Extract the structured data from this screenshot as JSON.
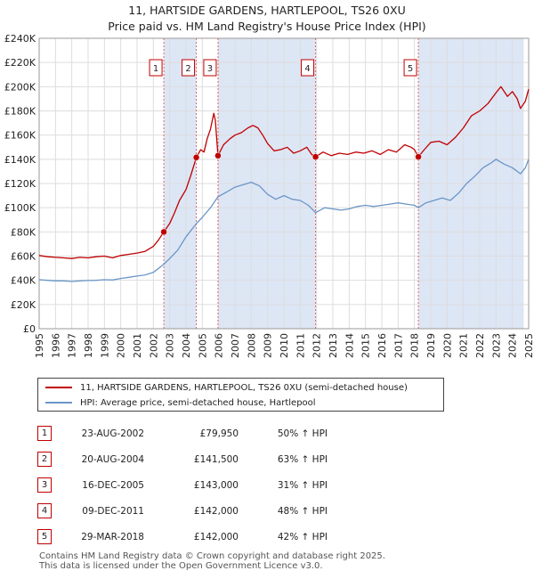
{
  "title_line1": "11, HARTSIDE GARDENS, HARTLEPOOL, TS26 0XU",
  "title_line2": "Price paid vs. HM Land Registry's House Price Index (HPI)",
  "colors": {
    "price_line": "#c00000",
    "hpi_line": "#6a96c8",
    "shade": "#dde6f5",
    "grid": "#dddddd",
    "vline": "#e06666"
  },
  "chart_data": {
    "type": "line",
    "xlim": [
      1995,
      2025
    ],
    "ylim": [
      0,
      240000
    ],
    "grid": true,
    "y_ticks": [
      {
        "value": 0,
        "label": "£0"
      },
      {
        "value": 20000,
        "label": "£20K"
      },
      {
        "value": 40000,
        "label": "£40K"
      },
      {
        "value": 60000,
        "label": "£60K"
      },
      {
        "value": 80000,
        "label": "£80K"
      },
      {
        "value": 100000,
        "label": "£100K"
      },
      {
        "value": 120000,
        "label": "£120K"
      },
      {
        "value": 140000,
        "label": "£140K"
      },
      {
        "value": 160000,
        "label": "£160K"
      },
      {
        "value": 180000,
        "label": "£180K"
      },
      {
        "value": 200000,
        "label": "£200K"
      },
      {
        "value": 220000,
        "label": "£220K"
      },
      {
        "value": 240000,
        "label": "£240K"
      }
    ],
    "x_ticks": [
      "1995",
      "1996",
      "1997",
      "1998",
      "1999",
      "2000",
      "2001",
      "2002",
      "2003",
      "2004",
      "2005",
      "2006",
      "2007",
      "2008",
      "2009",
      "2010",
      "2011",
      "2012",
      "2013",
      "2014",
      "2015",
      "2016",
      "2017",
      "2018",
      "2019",
      "2020",
      "2021",
      "2022",
      "2023",
      "2024",
      "2025"
    ],
    "shaded_ranges": [
      [
        2002.64,
        2004.63
      ],
      [
        2005.96,
        2011.94
      ],
      [
        2018.24,
        2024.7
      ]
    ],
    "series": [
      {
        "name": "11, HARTSIDE GARDENS, HARTLEPOOL, TS26 0XU (semi-detached house)",
        "color": "#c00000",
        "points": [
          [
            1995.0,
            60500
          ],
          [
            1995.5,
            59500
          ],
          [
            1996.0,
            59000
          ],
          [
            1996.5,
            58500
          ],
          [
            1997.0,
            58000
          ],
          [
            1997.5,
            59000
          ],
          [
            1998.0,
            58500
          ],
          [
            1998.5,
            59500
          ],
          [
            1999.0,
            60000
          ],
          [
            1999.5,
            58500
          ],
          [
            2000.0,
            60500
          ],
          [
            2000.5,
            61500
          ],
          [
            2001.0,
            62500
          ],
          [
            2001.5,
            64000
          ],
          [
            2002.0,
            68000
          ],
          [
            2002.3,
            73000
          ],
          [
            2002.64,
            79950
          ],
          [
            2003.0,
            87000
          ],
          [
            2003.3,
            96000
          ],
          [
            2003.6,
            106000
          ],
          [
            2004.0,
            115000
          ],
          [
            2004.3,
            127000
          ],
          [
            2004.63,
            141500
          ],
          [
            2004.9,
            148000
          ],
          [
            2005.1,
            146000
          ],
          [
            2005.3,
            157000
          ],
          [
            2005.5,
            165000
          ],
          [
            2005.7,
            178000
          ],
          [
            2005.8,
            172000
          ],
          [
            2005.96,
            143000
          ],
          [
            2006.3,
            152000
          ],
          [
            2006.7,
            157000
          ],
          [
            2007.0,
            160000
          ],
          [
            2007.4,
            162000
          ],
          [
            2007.8,
            166000
          ],
          [
            2008.1,
            168000
          ],
          [
            2008.4,
            166000
          ],
          [
            2008.7,
            160000
          ],
          [
            2009.0,
            153000
          ],
          [
            2009.4,
            147000
          ],
          [
            2009.8,
            148000
          ],
          [
            2010.2,
            150000
          ],
          [
            2010.6,
            145000
          ],
          [
            2011.0,
            147000
          ],
          [
            2011.4,
            150000
          ],
          [
            2011.7,
            144000
          ],
          [
            2011.94,
            142000
          ],
          [
            2012.4,
            146000
          ],
          [
            2012.9,
            143000
          ],
          [
            2013.4,
            145000
          ],
          [
            2013.9,
            144000
          ],
          [
            2014.4,
            146000
          ],
          [
            2014.9,
            145000
          ],
          [
            2015.4,
            147000
          ],
          [
            2015.9,
            144000
          ],
          [
            2016.4,
            148000
          ],
          [
            2016.9,
            146000
          ],
          [
            2017.4,
            152000
          ],
          [
            2017.8,
            150000
          ],
          [
            2018.0,
            148000
          ],
          [
            2018.24,
            142000
          ],
          [
            2018.6,
            148000
          ],
          [
            2019.0,
            154000
          ],
          [
            2019.5,
            155000
          ],
          [
            2020.0,
            152000
          ],
          [
            2020.5,
            158000
          ],
          [
            2021.0,
            166000
          ],
          [
            2021.5,
            176000
          ],
          [
            2022.0,
            180000
          ],
          [
            2022.5,
            186000
          ],
          [
            2023.0,
            195000
          ],
          [
            2023.3,
            200000
          ],
          [
            2023.7,
            192000
          ],
          [
            2024.0,
            196000
          ],
          [
            2024.3,
            190000
          ],
          [
            2024.5,
            182000
          ],
          [
            2024.8,
            188000
          ],
          [
            2025.0,
            198000
          ]
        ]
      },
      {
        "name": "HPI: Average price, semi-detached house, Hartlepool",
        "color": "#6a96c8",
        "points": [
          [
            1995.0,
            40500
          ],
          [
            1995.5,
            40000
          ],
          [
            1996.0,
            39500
          ],
          [
            1996.5,
            39500
          ],
          [
            1997.0,
            39000
          ],
          [
            1997.5,
            39500
          ],
          [
            1998.0,
            39800
          ],
          [
            1998.5,
            40000
          ],
          [
            1999.0,
            40500
          ],
          [
            1999.5,
            40300
          ],
          [
            2000.0,
            41500
          ],
          [
            2000.5,
            42500
          ],
          [
            2001.0,
            43500
          ],
          [
            2001.5,
            44500
          ],
          [
            2002.0,
            46500
          ],
          [
            2002.64,
            53300
          ],
          [
            2003.0,
            58000
          ],
          [
            2003.5,
            65000
          ],
          [
            2004.0,
            76000
          ],
          [
            2004.63,
            86800
          ],
          [
            2005.0,
            92000
          ],
          [
            2005.5,
            100000
          ],
          [
            2005.96,
            109000
          ],
          [
            2006.5,
            113000
          ],
          [
            2007.0,
            117000
          ],
          [
            2007.5,
            119000
          ],
          [
            2008.0,
            121000
          ],
          [
            2008.5,
            118000
          ],
          [
            2009.0,
            111000
          ],
          [
            2009.5,
            107000
          ],
          [
            2010.0,
            110000
          ],
          [
            2010.5,
            107000
          ],
          [
            2011.0,
            106000
          ],
          [
            2011.5,
            102000
          ],
          [
            2011.94,
            95900
          ],
          [
            2012.5,
            100000
          ],
          [
            2013.0,
            99000
          ],
          [
            2013.5,
            98000
          ],
          [
            2014.0,
            99000
          ],
          [
            2014.5,
            101000
          ],
          [
            2015.0,
            102000
          ],
          [
            2015.5,
            101000
          ],
          [
            2016.0,
            102000
          ],
          [
            2016.5,
            103000
          ],
          [
            2017.0,
            104000
          ],
          [
            2017.5,
            103000
          ],
          [
            2018.0,
            102000
          ],
          [
            2018.24,
            100000
          ],
          [
            2018.7,
            104000
          ],
          [
            2019.2,
            106000
          ],
          [
            2019.7,
            108000
          ],
          [
            2020.2,
            106000
          ],
          [
            2020.7,
            112000
          ],
          [
            2021.2,
            120000
          ],
          [
            2021.7,
            126000
          ],
          [
            2022.2,
            133000
          ],
          [
            2022.7,
            137000
          ],
          [
            2023.0,
            140000
          ],
          [
            2023.5,
            136000
          ],
          [
            2024.0,
            133000
          ],
          [
            2024.5,
            128000
          ],
          [
            2024.8,
            133000
          ],
          [
            2025.0,
            140000
          ]
        ]
      }
    ],
    "sales": [
      {
        "label": "1",
        "date": "23-AUG-2002",
        "year": 2002.64,
        "price": 79950
      },
      {
        "label": "2",
        "date": "20-AUG-2004",
        "year": 2004.63,
        "price": 141500
      },
      {
        "label": "3",
        "date": "16-DEC-2005",
        "year": 2005.96,
        "price": 143000
      },
      {
        "label": "4",
        "date": "09-DEC-2011",
        "year": 2011.94,
        "price": 142000
      },
      {
        "label": "5",
        "date": "29-MAR-2018",
        "year": 2018.24,
        "price": 142000
      }
    ]
  },
  "legend": {
    "price_label": "11, HARTSIDE GARDENS, HARTLEPOOL, TS26 0XU (semi-detached house)",
    "hpi_label": "HPI: Average price, semi-detached house, Hartlepool"
  },
  "transactions": [
    {
      "num": "1",
      "date": "23-AUG-2002",
      "price": "£79,950",
      "hpi": "50% ↑ HPI"
    },
    {
      "num": "2",
      "date": "20-AUG-2004",
      "price": "£141,500",
      "hpi": "63% ↑ HPI"
    },
    {
      "num": "3",
      "date": "16-DEC-2005",
      "price": "£143,000",
      "hpi": "31% ↑ HPI"
    },
    {
      "num": "4",
      "date": "09-DEC-2011",
      "price": "£142,000",
      "hpi": "48% ↑ HPI"
    },
    {
      "num": "5",
      "date": "29-MAR-2018",
      "price": "£142,000",
      "hpi": "42% ↑ HPI"
    }
  ],
  "footer_line1": "Contains HM Land Registry data © Crown copyright and database right 2025.",
  "footer_line2": "This data is licensed under the Open Government Licence v3.0."
}
